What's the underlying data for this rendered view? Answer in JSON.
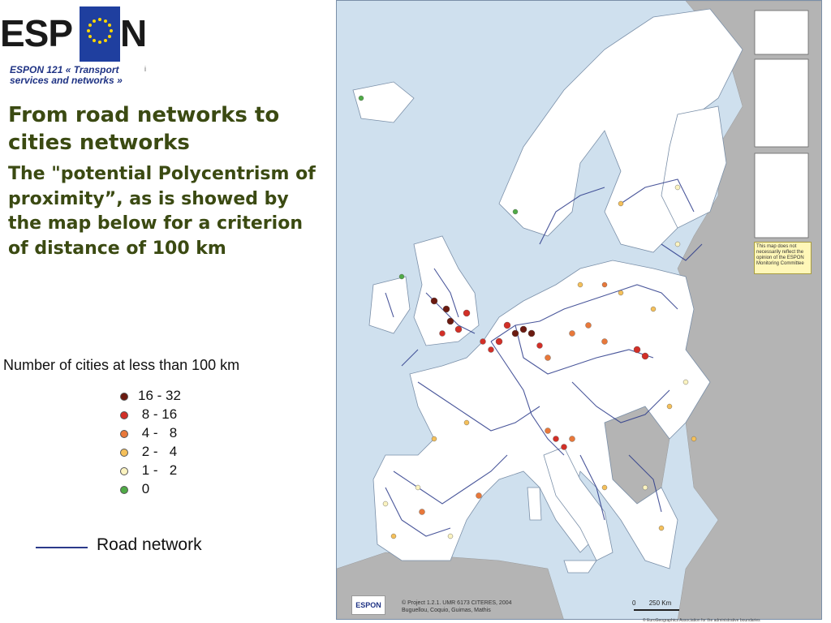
{
  "header": {
    "logo_text": "ESPON",
    "subtitle": "ESPON 121 « Transport services and networks »",
    "small_mark": "i"
  },
  "heading": "From road networks to cities networks",
  "body_text": "The \"potential Polycentrism of proximity”, as is showed by the map below for a criterion of distance of 100 km",
  "legend": {
    "title": "Number of cities at less than 100 km",
    "items": [
      {
        "label": "16 - 32",
        "color": "#6b1a10"
      },
      {
        "label": " 8 - 16",
        "color": "#d22f27"
      },
      {
        "label": " 4 -   8",
        "color": "#e8783a"
      },
      {
        "label": " 2 -   4",
        "color": "#f5c05a"
      },
      {
        "label": " 1 -   2",
        "color": "#fbf3c0"
      },
      {
        "label": " 0",
        "color": "#4faa46"
      }
    ],
    "road_label": "Road network",
    "road_color": "#2b3a8a"
  },
  "map": {
    "disclaimer": "This map does not necessarily reflect the opinion of the ESPON Monitoring Committee",
    "credits_line1": "© Project 1.2.1. UMR 6173 CITERES, 2004",
    "credits_line2": "Buguellou, Coquio, Guimas, Mathis",
    "scale_zero": "0",
    "scale_label": "250 Km",
    "logo": "ESPON",
    "copyright": "© EuroGeographics Association for the administrative boundaries",
    "colors": {
      "sea": "#cfe0ee",
      "land_study": "#ffffff",
      "land_other": "#b4b4b4",
      "border": "#7a8fa8"
    }
  }
}
